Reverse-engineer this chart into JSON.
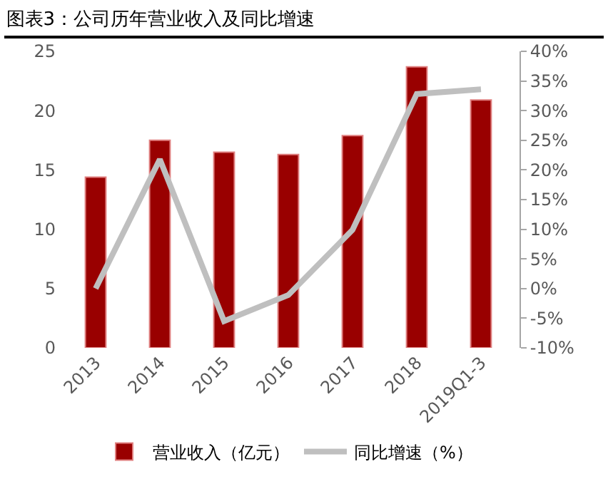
{
  "chart_data": {
    "type": "bar",
    "title": "图表3：公司历年营业收入及同比增速",
    "categories": [
      "2013",
      "2014",
      "2015",
      "2016",
      "2017",
      "2018",
      "2019Q1-3"
    ],
    "series": [
      {
        "name": "营业收入（亿元）",
        "color": "#990000",
        "values": [
          14.4,
          17.5,
          16.5,
          16.3,
          17.9,
          23.7,
          20.9
        ]
      },
      {
        "name": "同比增速（%）",
        "type": "line",
        "axis": "y2",
        "color": "#bfbfbf",
        "values": [
          0.0,
          21.8,
          -5.5,
          -1.1,
          9.9,
          32.8,
          33.6
        ]
      }
    ],
    "ylim": [
      0,
      25
    ],
    "yticks": [
      0,
      5,
      10,
      15,
      20,
      25
    ],
    "y2lim": [
      -10,
      40
    ],
    "y2ticks": [
      {
        "value": -10,
        "label": "-10%"
      },
      {
        "value": -5,
        "label": "-5%"
      },
      {
        "value": 0,
        "label": "0%"
      },
      {
        "value": 5,
        "label": "5%"
      },
      {
        "value": 10,
        "label": "10%"
      },
      {
        "value": 15,
        "label": "15%"
      },
      {
        "value": 20,
        "label": "20%"
      },
      {
        "value": 25,
        "label": "25%"
      },
      {
        "value": 30,
        "label": "30%"
      },
      {
        "value": 35,
        "label": "35%"
      },
      {
        "value": 40,
        "label": "40%"
      }
    ],
    "grid": false,
    "legend": "bottom",
    "marker": "none",
    "line_style": "solid"
  }
}
